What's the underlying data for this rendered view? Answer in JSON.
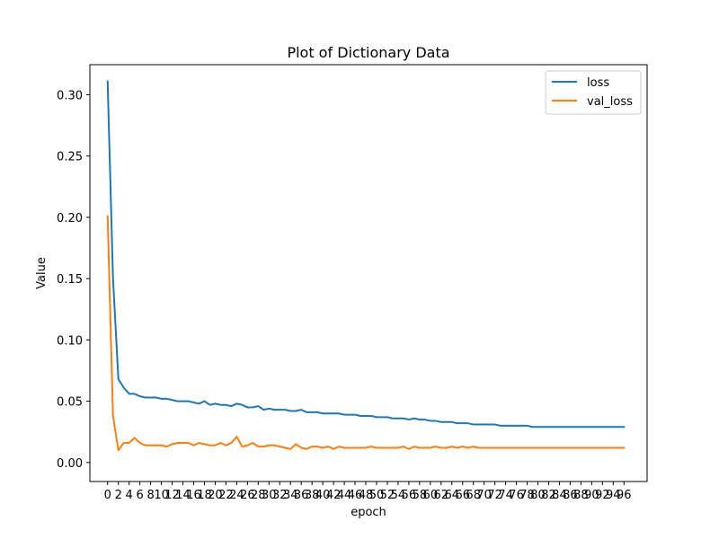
{
  "chart_data": {
    "type": "line",
    "title": "Plot of Dictionary Data",
    "xlabel": "epoch",
    "ylabel": "Value",
    "xlim": [
      -3.3,
      100.3
    ],
    "ylim": [
      -0.0155,
      0.3245
    ],
    "grid": false,
    "legend_position": "top-right",
    "x_ticks": [
      0,
      2,
      4,
      6,
      8,
      10,
      12,
      14,
      16,
      18,
      20,
      22,
      24,
      26,
      28,
      30,
      32,
      34,
      36,
      38,
      40,
      42,
      44,
      46,
      48,
      50,
      52,
      54,
      56,
      58,
      60,
      62,
      64,
      66,
      68,
      70,
      72,
      74,
      76,
      78,
      80,
      82,
      84,
      86,
      88,
      90,
      92,
      94,
      96
    ],
    "y_ticks": [
      0.0,
      0.05,
      0.1,
      0.15,
      0.2,
      0.25,
      0.3
    ],
    "y_tick_labels": [
      "0.00",
      "0.05",
      "0.10",
      "0.15",
      "0.20",
      "0.25",
      "0.30"
    ],
    "series": [
      {
        "name": "loss",
        "color": "#1f77b4",
        "values": [
          0.311,
          0.15,
          0.068,
          0.061,
          0.056,
          0.056,
          0.054,
          0.053,
          0.053,
          0.053,
          0.052,
          0.052,
          0.051,
          0.05,
          0.05,
          0.05,
          0.049,
          0.048,
          0.05,
          0.047,
          0.048,
          0.047,
          0.047,
          0.046,
          0.048,
          0.047,
          0.045,
          0.045,
          0.046,
          0.043,
          0.044,
          0.043,
          0.043,
          0.043,
          0.042,
          0.042,
          0.043,
          0.041,
          0.041,
          0.041,
          0.04,
          0.04,
          0.04,
          0.04,
          0.039,
          0.039,
          0.039,
          0.038,
          0.038,
          0.038,
          0.037,
          0.037,
          0.037,
          0.036,
          0.036,
          0.036,
          0.035,
          0.036,
          0.035,
          0.035,
          0.034,
          0.034,
          0.033,
          0.033,
          0.033,
          0.032,
          0.032,
          0.032,
          0.031,
          0.031,
          0.031,
          0.031,
          0.031,
          0.03,
          0.03,
          0.03,
          0.03,
          0.03,
          0.03,
          0.029,
          0.029,
          0.029,
          0.029,
          0.029,
          0.029,
          0.029,
          0.029,
          0.029,
          0.029,
          0.029,
          0.029,
          0.029,
          0.029,
          0.029,
          0.029,
          0.029,
          0.029
        ]
      },
      {
        "name": "val_loss",
        "color": "#ff7f0e",
        "values": [
          0.201,
          0.038,
          0.01,
          0.016,
          0.016,
          0.02,
          0.016,
          0.014,
          0.014,
          0.014,
          0.014,
          0.013,
          0.015,
          0.016,
          0.016,
          0.016,
          0.014,
          0.016,
          0.015,
          0.014,
          0.014,
          0.016,
          0.014,
          0.016,
          0.021,
          0.013,
          0.014,
          0.016,
          0.013,
          0.013,
          0.014,
          0.014,
          0.013,
          0.012,
          0.011,
          0.015,
          0.012,
          0.011,
          0.013,
          0.013,
          0.012,
          0.013,
          0.011,
          0.013,
          0.012,
          0.012,
          0.012,
          0.012,
          0.012,
          0.013,
          0.012,
          0.012,
          0.012,
          0.012,
          0.012,
          0.013,
          0.011,
          0.013,
          0.012,
          0.012,
          0.012,
          0.013,
          0.012,
          0.012,
          0.013,
          0.012,
          0.013,
          0.012,
          0.013,
          0.012,
          0.012,
          0.012,
          0.012,
          0.012,
          0.012,
          0.012,
          0.012,
          0.012,
          0.012,
          0.012,
          0.012,
          0.012,
          0.012,
          0.012,
          0.012,
          0.012,
          0.012,
          0.012,
          0.012,
          0.012,
          0.012,
          0.012,
          0.012,
          0.012,
          0.012,
          0.012,
          0.012
        ]
      }
    ]
  }
}
